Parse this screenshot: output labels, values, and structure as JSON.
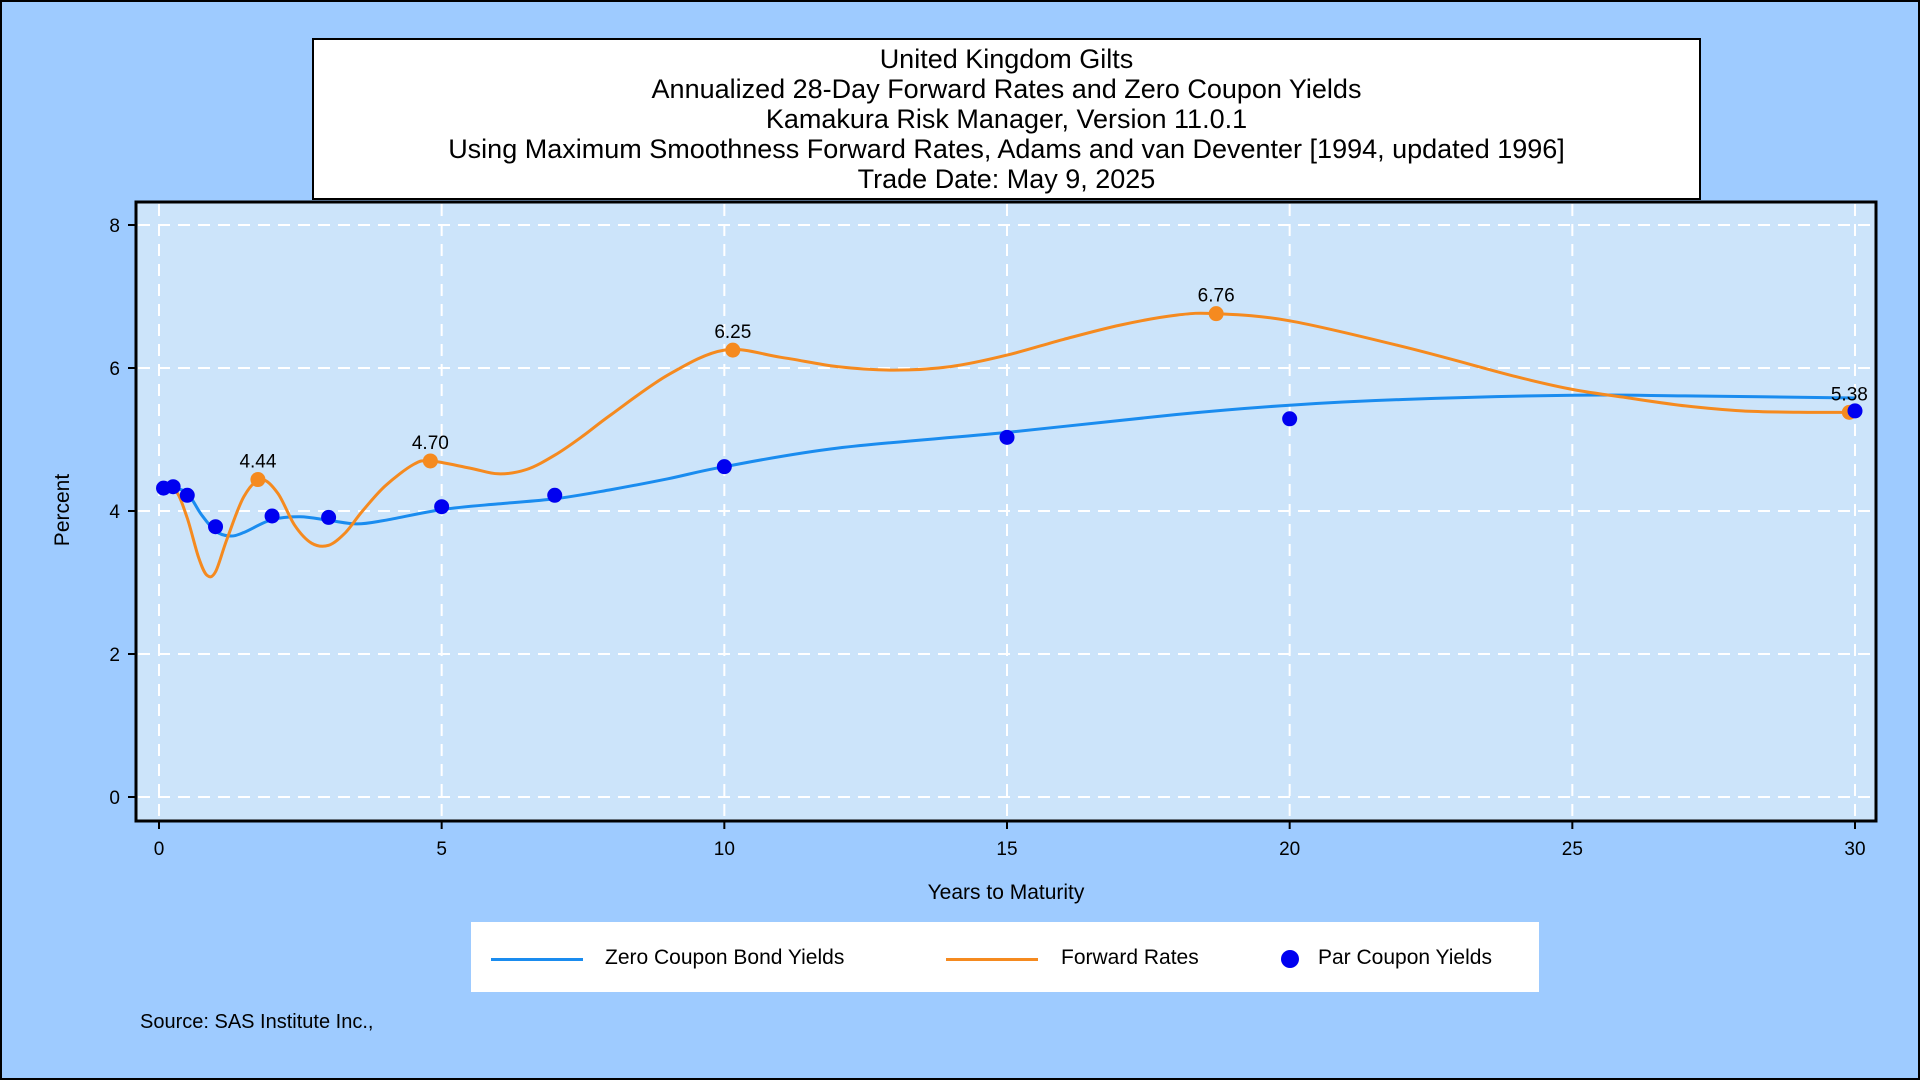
{
  "title_lines": [
    "United Kingdom Gilts",
    "Annualized 28-Day Forward Rates and Zero Coupon Yields",
    "Kamakura Risk Manager, Version 11.0.1",
    "Using Maximum Smoothness Forward Rates, Adams and van Deventer [1994, updated 1996]",
    "Trade Date: May 9, 2025"
  ],
  "source": "Source: SAS Institute Inc.,",
  "colors": {
    "background": "#9ecbff",
    "plot_area": "#cce4fa",
    "zero_coupon": "#1a8cef",
    "forward": "#f58a1f",
    "par": "#0000f0"
  },
  "chart_data": {
    "type": "line",
    "xlabel": "Years to Maturity",
    "ylabel": "Percent",
    "xlim": [
      0,
      30
    ],
    "ylim": [
      0,
      8
    ],
    "xticks": [
      0,
      5,
      10,
      15,
      20,
      25,
      30
    ],
    "yticks": [
      0,
      2,
      4,
      6,
      8
    ],
    "grid": true,
    "legend_position": "bottom",
    "series": [
      {
        "name": "Zero Coupon Bond Yields",
        "kind": "line",
        "x": [
          0.08,
          0.25,
          0.5,
          0.75,
          1.0,
          1.25,
          1.5,
          2.0,
          2.5,
          3.0,
          3.5,
          4.0,
          5.0,
          6.0,
          7.0,
          8.0,
          9.0,
          10.0,
          12.0,
          15.0,
          18.0,
          20.0,
          22.0,
          25.0,
          27.0,
          30.0
        ],
        "values": [
          4.32,
          4.32,
          4.25,
          3.95,
          3.72,
          3.65,
          3.7,
          3.88,
          3.92,
          3.87,
          3.82,
          3.87,
          4.02,
          4.1,
          4.17,
          4.3,
          4.45,
          4.62,
          4.88,
          5.1,
          5.35,
          5.48,
          5.56,
          5.62,
          5.61,
          5.58
        ]
      },
      {
        "name": "Forward Rates",
        "kind": "line",
        "x": [
          0.08,
          0.3,
          0.5,
          0.7,
          0.85,
          1.0,
          1.2,
          1.5,
          1.8,
          2.1,
          2.4,
          2.7,
          3.0,
          3.3,
          3.6,
          4.0,
          4.5,
          4.8,
          5.5,
          6.0,
          6.5,
          7.0,
          7.5,
          8.0,
          9.0,
          10.0,
          11.0,
          12.0,
          13.0,
          14.0,
          15.0,
          16.0,
          17.0,
          18.0,
          18.7,
          20.0,
          22.0,
          24.0,
          25.0,
          26.0,
          27.0,
          28.0,
          29.0,
          30.0
        ],
        "values": [
          4.32,
          4.28,
          3.9,
          3.35,
          3.1,
          3.15,
          3.6,
          4.2,
          4.44,
          4.25,
          3.8,
          3.55,
          3.52,
          3.7,
          4.0,
          4.35,
          4.65,
          4.7,
          4.6,
          4.52,
          4.58,
          4.78,
          5.05,
          5.35,
          5.9,
          6.25,
          6.15,
          6.02,
          5.97,
          6.02,
          6.18,
          6.4,
          6.6,
          6.74,
          6.76,
          6.66,
          6.3,
          5.88,
          5.7,
          5.58,
          5.47,
          5.4,
          5.38,
          5.38
        ]
      },
      {
        "name": "Par Coupon Yields",
        "kind": "scatter",
        "x": [
          0.08,
          0.25,
          0.5,
          1.0,
          2.0,
          3.0,
          5.0,
          7.0,
          10.0,
          15.0,
          20.0,
          30.0
        ],
        "values": [
          4.32,
          4.34,
          4.22,
          3.78,
          3.93,
          3.91,
          4.06,
          4.22,
          4.62,
          5.03,
          5.29,
          5.4
        ]
      }
    ],
    "annotations": [
      {
        "x": 1.75,
        "y": 4.44,
        "text": "4.44"
      },
      {
        "x": 4.8,
        "y": 4.7,
        "text": "4.70"
      },
      {
        "x": 10.15,
        "y": 6.25,
        "text": "6.25"
      },
      {
        "x": 18.7,
        "y": 6.76,
        "text": "6.76"
      },
      {
        "x": 29.9,
        "y": 5.38,
        "text": "5.38"
      }
    ]
  }
}
